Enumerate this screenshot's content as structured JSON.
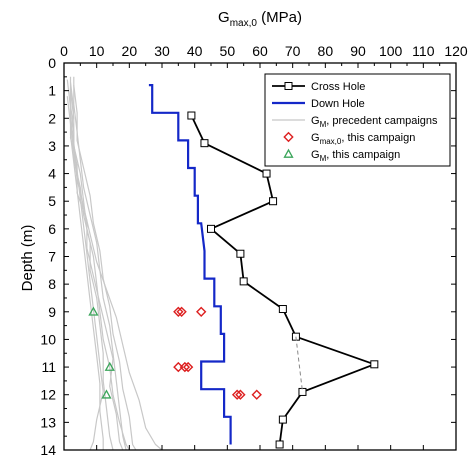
{
  "chart_data": {
    "type": "line",
    "orientation": "depth-profile",
    "title": "",
    "xlabel": "G",
    "xlabel_sub": "max,0",
    "xlabel_unit": " (MPa)",
    "ylabel": "Depth (m)",
    "xlim": [
      0,
      120
    ],
    "ylim": [
      0,
      14
    ],
    "y_inverted": true,
    "x_axis_position": "top",
    "x_ticks": [
      0,
      10,
      20,
      30,
      40,
      50,
      60,
      70,
      80,
      90,
      100,
      110,
      120
    ],
    "y_ticks": [
      0,
      1,
      2,
      3,
      4,
      5,
      6,
      7,
      8,
      9,
      10,
      11,
      12,
      13,
      14
    ],
    "grid": false,
    "legend_position": "top-right",
    "legend": [
      {
        "label": "Cross Hole",
        "sub": "",
        "rest": "",
        "marker": "square-line",
        "color": "#000000"
      },
      {
        "label": "Down Hole",
        "sub": "",
        "rest": "",
        "marker": "line",
        "color": "#1428c8"
      },
      {
        "label": "G",
        "sub": "M",
        "rest": ", precedent campaigns",
        "marker": "thin-line",
        "color": "#c8c8c8"
      },
      {
        "label": "G",
        "sub": "max,0",
        "rest": ", this campaign",
        "marker": "diamond",
        "color": "#dd1f1f"
      },
      {
        "label": "G",
        "sub": "M",
        "rest": ", this campaign",
        "marker": "triangle",
        "color": "#3aa55a"
      }
    ],
    "series": [
      {
        "name": "Cross Hole",
        "style": "line-square",
        "color": "#000000",
        "points": [
          [
            39,
            1.9
          ],
          [
            43,
            2.9
          ],
          [
            62,
            4.0
          ],
          [
            64,
            5.0
          ],
          [
            45,
            6.0
          ],
          [
            54,
            6.9
          ],
          [
            55,
            7.9
          ],
          [
            67,
            8.9
          ],
          [
            71,
            9.9
          ],
          [
            95,
            10.9
          ],
          [
            73,
            11.9
          ],
          [
            67,
            12.9
          ],
          [
            66,
            13.8
          ]
        ]
      },
      {
        "name": "Cross Hole",
        "style": "dashed-connector",
        "color": "#888888",
        "points": [
          [
            71,
            9.9
          ],
          [
            73,
            11.9
          ]
        ]
      },
      {
        "name": "Down Hole",
        "style": "step-line",
        "color": "#1428c8",
        "points": [
          [
            26,
            0.8
          ],
          [
            27,
            0.8
          ],
          [
            27,
            1.8
          ],
          [
            35,
            1.8
          ],
          [
            35,
            2.8
          ],
          [
            38,
            2.8
          ],
          [
            38,
            3.8
          ],
          [
            40,
            3.8
          ],
          [
            40,
            4.8
          ],
          [
            41,
            4.8
          ],
          [
            41,
            5.8
          ],
          [
            42,
            5.8
          ],
          [
            43,
            6.8
          ],
          [
            43,
            7.8
          ],
          [
            46,
            7.8
          ],
          [
            46,
            8.8
          ],
          [
            48,
            8.8
          ],
          [
            48,
            9.8
          ],
          [
            49,
            9.8
          ],
          [
            49,
            10.8
          ],
          [
            42,
            10.8
          ],
          [
            42,
            11.8
          ],
          [
            49,
            11.8
          ],
          [
            49,
            12.8
          ],
          [
            51,
            12.8
          ],
          [
            51,
            13.8
          ]
        ]
      },
      {
        "name": "G_M, precedent campaigns",
        "style": "thin-lines",
        "color": "#c8c8c8",
        "lines": [
          [
            [
              2,
              0.5
            ],
            [
              2,
              1.5
            ],
            [
              3,
              2.5
            ],
            [
              3,
              3.5
            ],
            [
              5,
              4.5
            ],
            [
              6,
              5.5
            ],
            [
              8,
              6.5
            ],
            [
              8,
              7.5
            ],
            [
              10,
              8.5
            ],
            [
              11,
              9.5
            ],
            [
              12,
              10.5
            ],
            [
              12,
              11.5
            ],
            [
              13,
              12.5
            ],
            [
              14,
              13.5
            ],
            [
              15,
              14
            ]
          ],
          [
            [
              3,
              0.5
            ],
            [
              3,
              1.5
            ],
            [
              4,
              2.5
            ],
            [
              5,
              3.5
            ],
            [
              6,
              4.5
            ],
            [
              8,
              5.5
            ],
            [
              10,
              6.5
            ],
            [
              11,
              7.5
            ],
            [
              12,
              8.5
            ],
            [
              14,
              9.5
            ],
            [
              15,
              10.5
            ],
            [
              16,
              11.5
            ],
            [
              17,
              12.5
            ],
            [
              18,
              13.5
            ],
            [
              19,
              14
            ]
          ],
          [
            [
              2,
              0.7
            ],
            [
              3,
              1.7
            ],
            [
              2,
              2.7
            ],
            [
              4,
              3.7
            ],
            [
              4,
              4.7
            ],
            [
              7,
              5.7
            ],
            [
              7,
              6.7
            ],
            [
              9,
              7.7
            ],
            [
              11,
              8.7
            ],
            [
              13,
              9.7
            ],
            [
              15,
              10.7
            ],
            [
              14,
              11.7
            ],
            [
              16,
              12.7
            ],
            [
              17,
              13.7
            ],
            [
              18,
              14
            ]
          ],
          [
            [
              1,
              0.6
            ],
            [
              2,
              1.6
            ],
            [
              2,
              2.6
            ],
            [
              3,
              3.6
            ],
            [
              4,
              4.6
            ],
            [
              5,
              5.6
            ],
            [
              6,
              6.6
            ],
            [
              7,
              7.6
            ],
            [
              8,
              8.6
            ],
            [
              9,
              9.6
            ],
            [
              10,
              10.6
            ],
            [
              11,
              11.6
            ],
            [
              11,
              12.6
            ],
            [
              12,
              13.6
            ],
            [
              12,
              14
            ]
          ],
          [
            [
              3,
              0.8
            ],
            [
              4,
              1.8
            ],
            [
              4,
              2.8
            ],
            [
              6,
              3.8
            ],
            [
              8,
              4.8
            ],
            [
              9,
              5.8
            ],
            [
              11,
              6.8
            ],
            [
              12,
              7.8
            ],
            [
              14,
              8.8
            ],
            [
              15,
              9.8
            ],
            [
              17,
              10.8
            ],
            [
              18,
              11.8
            ],
            [
              20,
              12.8
            ],
            [
              21,
              13.8
            ],
            [
              22,
              14
            ]
          ],
          [
            [
              2,
              1.0
            ],
            [
              3,
              2.0
            ],
            [
              3,
              3.0
            ],
            [
              5,
              4.0
            ],
            [
              6,
              5.0
            ],
            [
              7,
              6.0
            ],
            [
              9,
              7.0
            ],
            [
              10,
              8.0
            ],
            [
              11,
              9.0
            ],
            [
              12,
              10.0
            ],
            [
              14,
              11.0
            ],
            [
              15,
              12.0
            ],
            [
              17,
              13.0
            ],
            [
              19,
              13.8
            ],
            [
              20,
              14
            ]
          ],
          [
            [
              1,
              1.2
            ],
            [
              2,
              2.2
            ],
            [
              3,
              3.2
            ],
            [
              4,
              4.2
            ],
            [
              6,
              5.2
            ],
            [
              8,
              6.2
            ],
            [
              10,
              7.2
            ],
            [
              13,
              8.2
            ],
            [
              16,
              9.2
            ],
            [
              18,
              10.2
            ],
            [
              20,
              11.2
            ],
            [
              23,
              12.2
            ],
            [
              25,
              13.2
            ],
            [
              28,
              13.8
            ],
            [
              30,
              14
            ]
          ],
          [
            [
              2,
              0.9
            ],
            [
              2,
              1.9
            ],
            [
              3,
              2.9
            ],
            [
              4,
              3.9
            ],
            [
              5,
              4.9
            ],
            [
              6,
              5.9
            ],
            [
              7,
              6.9
            ],
            [
              8,
              7.9
            ],
            [
              9,
              8.9
            ],
            [
              10,
              9.9
            ],
            [
              11,
              10.9
            ],
            [
              12,
              11.9
            ],
            [
              10,
              12.9
            ],
            [
              9,
              13.7
            ],
            [
              8,
              14
            ]
          ]
        ]
      },
      {
        "name": "G_max,0, this campaign",
        "style": "diamond",
        "color": "#dd1f1f",
        "points": [
          [
            35,
            9.0
          ],
          [
            36,
            9.0
          ],
          [
            42,
            9.0
          ],
          [
            35,
            11.0
          ],
          [
            37,
            11.0
          ],
          [
            38,
            11.0
          ],
          [
            53,
            12.0
          ],
          [
            54,
            12.0
          ],
          [
            59,
            12.0
          ]
        ]
      },
      {
        "name": "G_M, this campaign",
        "style": "triangle",
        "color": "#3aa55a",
        "points": [
          [
            9,
            9.0
          ],
          [
            14,
            11.0
          ],
          [
            13,
            12.0
          ]
        ]
      }
    ]
  }
}
